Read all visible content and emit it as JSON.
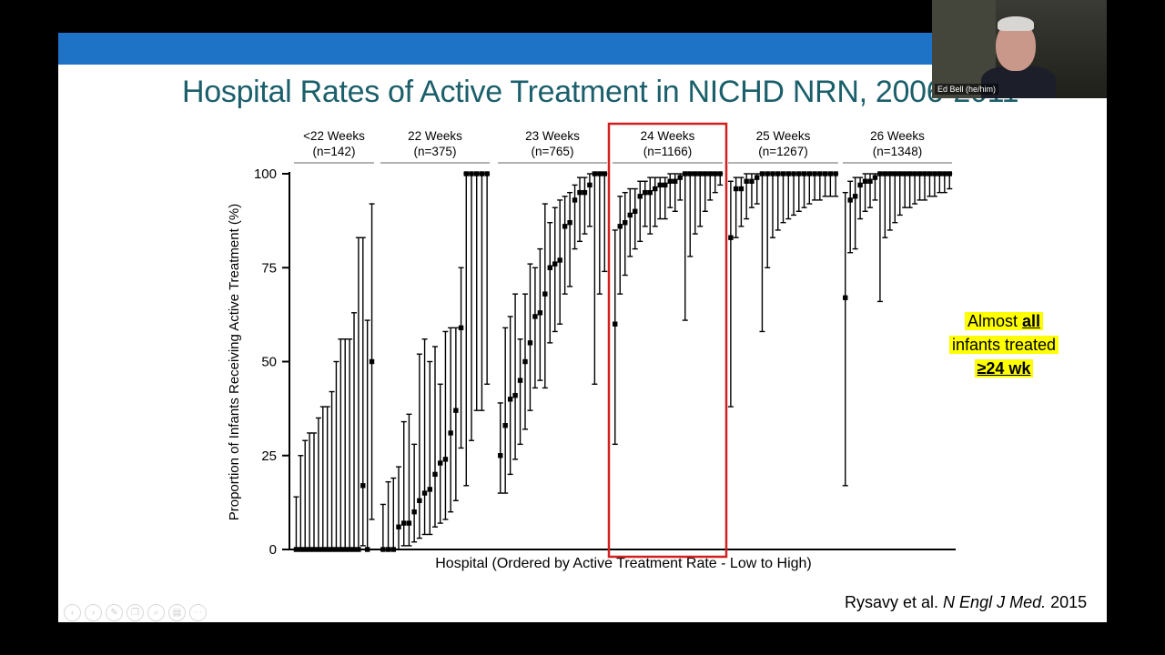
{
  "slide": {
    "title": "Hospital Rates of Active Treatment in NICHD NRN, 2006-2011",
    "callout": {
      "line1_prefix": "Almost ",
      "line1_emph": "all",
      "line2": "infants treated",
      "line3": "≥24 wk"
    },
    "citation": {
      "authors": "Rysavy et al. ",
      "journal": "N Engl J Med.",
      "year": " 2015"
    }
  },
  "video": {
    "participant_name": "Ed Bell (he/him)"
  },
  "toolbar": {
    "icons": [
      "back-icon",
      "forward-icon",
      "pen-icon",
      "copy-icon",
      "zoom-icon",
      "slides-icon",
      "more-icon"
    ]
  },
  "colors": {
    "header_bar": "#1f73c7",
    "title": "#1b5f6b",
    "highlight_box": "#d21f1f",
    "callout_bg": "#ffff00"
  },
  "chart_data": {
    "type": "scatter",
    "subtype": "point estimates with confidence intervals, grouped by gestational age",
    "ylabel": "Proportion of Infants Receiving Active Treatment (%)",
    "xlabel": "Hospital (Ordered by Active Treatment Rate - Low to High)",
    "ylim": [
      0,
      100
    ],
    "yticks": [
      0,
      25,
      50,
      75,
      100
    ],
    "highlighted_group": "24 Weeks",
    "groups": [
      {
        "label": "<22 Weeks",
        "n": "(n=142)",
        "points": [
          {
            "y": 0,
            "lo": 0,
            "hi": 14
          },
          {
            "y": 0,
            "lo": 0,
            "hi": 25
          },
          {
            "y": 0,
            "lo": 0,
            "hi": 29
          },
          {
            "y": 0,
            "lo": 0,
            "hi": 31
          },
          {
            "y": 0,
            "lo": 0,
            "hi": 31
          },
          {
            "y": 0,
            "lo": 0,
            "hi": 35
          },
          {
            "y": 0,
            "lo": 0,
            "hi": 38
          },
          {
            "y": 0,
            "lo": 0,
            "hi": 38
          },
          {
            "y": 0,
            "lo": 0,
            "hi": 42
          },
          {
            "y": 0,
            "lo": 0,
            "hi": 50
          },
          {
            "y": 0,
            "lo": 0,
            "hi": 56
          },
          {
            "y": 0,
            "lo": 0,
            "hi": 56
          },
          {
            "y": 0,
            "lo": 0,
            "hi": 56
          },
          {
            "y": 0,
            "lo": 0,
            "hi": 63
          },
          {
            "y": 0,
            "lo": 0,
            "hi": 83
          },
          {
            "y": 17,
            "lo": 1,
            "hi": 83
          },
          {
            "y": 0,
            "lo": 0,
            "hi": 61
          },
          {
            "y": 50,
            "lo": 8,
            "hi": 92
          }
        ]
      },
      {
        "label": "22 Weeks",
        "n": "(n=375)",
        "points": [
          {
            "y": 0,
            "lo": 0,
            "hi": 12
          },
          {
            "y": 0,
            "lo": 0,
            "hi": 18
          },
          {
            "y": 0,
            "lo": 0,
            "hi": 19
          },
          {
            "y": 6,
            "lo": 0,
            "hi": 22
          },
          {
            "y": 7,
            "lo": 1,
            "hi": 34
          },
          {
            "y": 7,
            "lo": 1,
            "hi": 36
          },
          {
            "y": 10,
            "lo": 2,
            "hi": 28
          },
          {
            "y": 13,
            "lo": 3,
            "hi": 52
          },
          {
            "y": 15,
            "lo": 4,
            "hi": 56
          },
          {
            "y": 16,
            "lo": 4,
            "hi": 50
          },
          {
            "y": 20,
            "lo": 6,
            "hi": 54
          },
          {
            "y": 23,
            "lo": 7,
            "hi": 44
          },
          {
            "y": 24,
            "lo": 8,
            "hi": 58
          },
          {
            "y": 31,
            "lo": 10,
            "hi": 59
          },
          {
            "y": 37,
            "lo": 13,
            "hi": 59
          },
          {
            "y": 59,
            "lo": 27,
            "hi": 75
          },
          {
            "y": 100,
            "lo": 17,
            "hi": 100
          },
          {
            "y": 100,
            "lo": 29,
            "hi": 100
          },
          {
            "y": 100,
            "lo": 37,
            "hi": 100
          },
          {
            "y": 100,
            "lo": 37,
            "hi": 100
          },
          {
            "y": 100,
            "lo": 44,
            "hi": 100
          }
        ]
      },
      {
        "label": "23 Weeks",
        "n": "(n=765)",
        "points": [
          {
            "y": 25,
            "lo": 15,
            "hi": 39
          },
          {
            "y": 33,
            "lo": 15,
            "hi": 59
          },
          {
            "y": 40,
            "lo": 20,
            "hi": 62
          },
          {
            "y": 41,
            "lo": 24,
            "hi": 68
          },
          {
            "y": 45,
            "lo": 28,
            "hi": 56
          },
          {
            "y": 50,
            "lo": 32,
            "hi": 68
          },
          {
            "y": 55,
            "lo": 37,
            "hi": 76
          },
          {
            "y": 62,
            "lo": 43,
            "hi": 75
          },
          {
            "y": 63,
            "lo": 45,
            "hi": 80
          },
          {
            "y": 68,
            "lo": 43,
            "hi": 92
          },
          {
            "y": 75,
            "lo": 55,
            "hi": 87
          },
          {
            "y": 76,
            "lo": 58,
            "hi": 91
          },
          {
            "y": 77,
            "lo": 60,
            "hi": 93
          },
          {
            "y": 86,
            "lo": 68,
            "hi": 94
          },
          {
            "y": 87,
            "lo": 70,
            "hi": 95
          },
          {
            "y": 93,
            "lo": 80,
            "hi": 97
          },
          {
            "y": 95,
            "lo": 82,
            "hi": 99
          },
          {
            "y": 95,
            "lo": 84,
            "hi": 99
          },
          {
            "y": 97,
            "lo": 86,
            "hi": 100
          },
          {
            "y": 100,
            "lo": 44,
            "hi": 100
          },
          {
            "y": 100,
            "lo": 68,
            "hi": 100
          },
          {
            "y": 100,
            "lo": 74,
            "hi": 100
          }
        ]
      },
      {
        "label": "24 Weeks",
        "n": "(n=1166)",
        "points": [
          {
            "y": 60,
            "lo": 28,
            "hi": 85
          },
          {
            "y": 86,
            "lo": 68,
            "hi": 94
          },
          {
            "y": 87,
            "lo": 73,
            "hi": 95
          },
          {
            "y": 89,
            "lo": 78,
            "hi": 96
          },
          {
            "y": 90,
            "lo": 80,
            "hi": 96
          },
          {
            "y": 94,
            "lo": 82,
            "hi": 98
          },
          {
            "y": 95,
            "lo": 86,
            "hi": 98
          },
          {
            "y": 95,
            "lo": 84,
            "hi": 99
          },
          {
            "y": 96,
            "lo": 86,
            "hi": 99
          },
          {
            "y": 97,
            "lo": 88,
            "hi": 99
          },
          {
            "y": 97,
            "lo": 88,
            "hi": 99
          },
          {
            "y": 98,
            "lo": 91,
            "hi": 100
          },
          {
            "y": 98,
            "lo": 90,
            "hi": 100
          },
          {
            "y": 99,
            "lo": 93,
            "hi": 100
          },
          {
            "y": 100,
            "lo": 61,
            "hi": 100
          },
          {
            "y": 100,
            "lo": 78,
            "hi": 100
          },
          {
            "y": 100,
            "lo": 84,
            "hi": 100
          },
          {
            "y": 100,
            "lo": 86,
            "hi": 100
          },
          {
            "y": 100,
            "lo": 90,
            "hi": 100
          },
          {
            "y": 100,
            "lo": 93,
            "hi": 100
          },
          {
            "y": 100,
            "lo": 95,
            "hi": 100
          },
          {
            "y": 100,
            "lo": 97,
            "hi": 100
          }
        ]
      },
      {
        "label": "25 Weeks",
        "n": "(n=1267)",
        "points": [
          {
            "y": 83,
            "lo": 38,
            "hi": 98
          },
          {
            "y": 96,
            "lo": 83,
            "hi": 99
          },
          {
            "y": 96,
            "lo": 86,
            "hi": 99
          },
          {
            "y": 98,
            "lo": 88,
            "hi": 100
          },
          {
            "y": 98,
            "lo": 91,
            "hi": 100
          },
          {
            "y": 99,
            "lo": 92,
            "hi": 100
          },
          {
            "y": 100,
            "lo": 58,
            "hi": 100
          },
          {
            "y": 100,
            "lo": 75,
            "hi": 100
          },
          {
            "y": 100,
            "lo": 83,
            "hi": 100
          },
          {
            "y": 100,
            "lo": 85,
            "hi": 100
          },
          {
            "y": 100,
            "lo": 87,
            "hi": 100
          },
          {
            "y": 100,
            "lo": 88,
            "hi": 100
          },
          {
            "y": 100,
            "lo": 89,
            "hi": 100
          },
          {
            "y": 100,
            "lo": 90,
            "hi": 100
          },
          {
            "y": 100,
            "lo": 91,
            "hi": 100
          },
          {
            "y": 100,
            "lo": 92,
            "hi": 100
          },
          {
            "y": 100,
            "lo": 93,
            "hi": 100
          },
          {
            "y": 100,
            "lo": 93,
            "hi": 100
          },
          {
            "y": 100,
            "lo": 94,
            "hi": 100
          },
          {
            "y": 100,
            "lo": 94,
            "hi": 100
          },
          {
            "y": 100,
            "lo": 94,
            "hi": 100
          }
        ]
      },
      {
        "label": "26 Weeks",
        "n": "(n=1348)",
        "points": [
          {
            "y": 67,
            "lo": 17,
            "hi": 95
          },
          {
            "y": 93,
            "lo": 79,
            "hi": 98
          },
          {
            "y": 94,
            "lo": 80,
            "hi": 99
          },
          {
            "y": 97,
            "lo": 88,
            "hi": 99
          },
          {
            "y": 98,
            "lo": 90,
            "hi": 100
          },
          {
            "y": 98,
            "lo": 91,
            "hi": 100
          },
          {
            "y": 99,
            "lo": 93,
            "hi": 100
          },
          {
            "y": 100,
            "lo": 66,
            "hi": 100
          },
          {
            "y": 100,
            "lo": 83,
            "hi": 100
          },
          {
            "y": 100,
            "lo": 85,
            "hi": 100
          },
          {
            "y": 100,
            "lo": 87,
            "hi": 100
          },
          {
            "y": 100,
            "lo": 89,
            "hi": 100
          },
          {
            "y": 100,
            "lo": 91,
            "hi": 100
          },
          {
            "y": 100,
            "lo": 91,
            "hi": 100
          },
          {
            "y": 100,
            "lo": 92,
            "hi": 100
          },
          {
            "y": 100,
            "lo": 93,
            "hi": 100
          },
          {
            "y": 100,
            "lo": 93,
            "hi": 100
          },
          {
            "y": 100,
            "lo": 94,
            "hi": 100
          },
          {
            "y": 100,
            "lo": 94,
            "hi": 100
          },
          {
            "y": 100,
            "lo": 95,
            "hi": 100
          },
          {
            "y": 100,
            "lo": 95,
            "hi": 100
          },
          {
            "y": 100,
            "lo": 96,
            "hi": 100
          }
        ]
      }
    ]
  }
}
